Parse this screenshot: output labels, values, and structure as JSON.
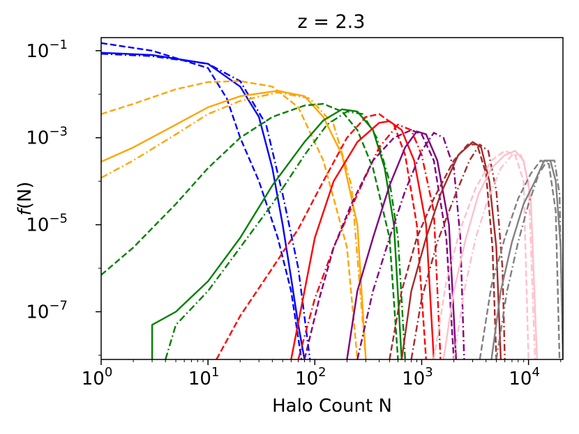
{
  "chart_data": {
    "type": "line",
    "title": "z = 2.3",
    "xlabel": "Halo Count N",
    "ylabel_italic": "f",
    "ylabel_rest": "(N)",
    "xscale": "log",
    "yscale": "log",
    "xlim": [
      1,
      21000
    ],
    "ylim": [
      8e-09,
      0.2
    ],
    "grid": false,
    "legend": "none",
    "xticks": [
      {
        "value": 1,
        "base": "10",
        "exp": "0"
      },
      {
        "value": 10,
        "base": "10",
        "exp": "1"
      },
      {
        "value": 100,
        "base": "10",
        "exp": "2"
      },
      {
        "value": 1000,
        "base": "10",
        "exp": "3"
      },
      {
        "value": 10000,
        "base": "10",
        "exp": "4"
      }
    ],
    "yticks": [
      {
        "value": 0.1,
        "base": "10",
        "exp": "−1"
      },
      {
        "value": 0.001,
        "base": "10",
        "exp": "−3"
      },
      {
        "value": 1e-05,
        "base": "10",
        "exp": "−5"
      },
      {
        "value": 1e-07,
        "base": "10",
        "exp": "−7"
      }
    ],
    "series": [
      {
        "color": "#0000ff",
        "style": "solid",
        "points": [
          [
            1,
            0.09
          ],
          [
            3,
            0.08
          ],
          [
            10,
            0.05
          ],
          [
            20,
            0.015
          ],
          [
            30,
            0.003
          ],
          [
            40,
            0.0002
          ],
          [
            50,
            1e-05
          ],
          [
            60,
            6e-07
          ],
          [
            70,
            5e-08
          ],
          [
            80,
            8e-09
          ]
        ]
      },
      {
        "color": "#0000ff",
        "style": "dashed",
        "points": [
          [
            1,
            0.15
          ],
          [
            3,
            0.1
          ],
          [
            10,
            0.04
          ],
          [
            15,
            0.008
          ],
          [
            20,
            0.001
          ],
          [
            30,
            0.0001
          ],
          [
            45,
            5e-06
          ],
          [
            60,
            3e-07
          ],
          [
            75,
            8e-09
          ]
        ]
      },
      {
        "color": "#0000ff",
        "style": "dashdot",
        "points": [
          [
            1,
            0.085
          ],
          [
            3,
            0.075
          ],
          [
            10,
            0.05
          ],
          [
            20,
            0.02
          ],
          [
            35,
            0.002
          ],
          [
            50,
            5e-05
          ],
          [
            70,
            1e-06
          ],
          [
            90,
            8e-09
          ]
        ]
      },
      {
        "color": "#ffa500",
        "style": "solid",
        "points": [
          [
            1,
            0.00028
          ],
          [
            2,
            0.0006
          ],
          [
            5,
            0.002
          ],
          [
            10,
            0.005
          ],
          [
            20,
            0.009
          ],
          [
            45,
            0.012
          ],
          [
            80,
            0.009
          ],
          [
            120,
            0.003
          ],
          [
            180,
            0.0004
          ],
          [
            250,
            1e-05
          ],
          [
            300,
            8e-09
          ]
        ]
      },
      {
        "color": "#ffa500",
        "style": "dashed",
        "points": [
          [
            1,
            0.0035
          ],
          [
            2,
            0.006
          ],
          [
            5,
            0.013
          ],
          [
            10,
            0.019
          ],
          [
            20,
            0.02
          ],
          [
            40,
            0.015
          ],
          [
            70,
            0.005
          ],
          [
            120,
            0.0003
          ],
          [
            200,
            3e-06
          ],
          [
            250,
            8e-09
          ]
        ]
      },
      {
        "color": "#ffa500",
        "style": "dashdot",
        "points": [
          [
            1,
            0.00012
          ],
          [
            2,
            0.0003
          ],
          [
            5,
            0.0012
          ],
          [
            10,
            0.0035
          ],
          [
            20,
            0.007
          ],
          [
            45,
            0.011
          ],
          [
            90,
            0.008
          ],
          [
            150,
            0.002
          ],
          [
            220,
            8e-05
          ],
          [
            300,
            8e-09
          ]
        ]
      },
      {
        "color": "#008000",
        "style": "solid",
        "points": [
          [
            3,
            8e-11
          ],
          [
            3,
            5e-08
          ],
          [
            5,
            1e-07
          ],
          [
            10,
            5e-07
          ],
          [
            20,
            5e-06
          ],
          [
            40,
            8e-05
          ],
          [
            80,
            0.0008
          ],
          [
            120,
            0.0025
          ],
          [
            180,
            0.0045
          ],
          [
            250,
            0.004
          ],
          [
            350,
            0.0015
          ],
          [
            450,
            0.0002
          ],
          [
            550,
            1e-05
          ],
          [
            650,
            8e-09
          ]
        ]
      },
      {
        "color": "#008000",
        "style": "dashed",
        "points": [
          [
            1,
            7e-07
          ],
          [
            2,
            3e-06
          ],
          [
            5,
            3e-05
          ],
          [
            10,
            0.0002
          ],
          [
            20,
            0.001
          ],
          [
            40,
            0.003
          ],
          [
            80,
            0.0055
          ],
          [
            120,
            0.006
          ],
          [
            180,
            0.004
          ],
          [
            250,
            0.0015
          ],
          [
            350,
            0.0002
          ],
          [
            500,
            5e-06
          ],
          [
            600,
            8e-09
          ]
        ]
      },
      {
        "color": "#008000",
        "style": "dashdot",
        "points": [
          [
            4,
            8e-09
          ],
          [
            5,
            5e-08
          ],
          [
            10,
            3e-07
          ],
          [
            20,
            3e-06
          ],
          [
            40,
            3e-05
          ],
          [
            80,
            0.0004
          ],
          [
            130,
            0.002
          ],
          [
            200,
            0.004
          ],
          [
            280,
            0.0035
          ],
          [
            380,
            0.001
          ],
          [
            500,
            0.0001
          ],
          [
            600,
            5e-06
          ],
          [
            700,
            8e-09
          ]
        ]
      },
      {
        "color": "#ff0000",
        "style": "solid",
        "points": [
          [
            60,
            8e-09
          ],
          [
            80,
            3e-07
          ],
          [
            100,
            5e-06
          ],
          [
            150,
            0.0001
          ],
          [
            250,
            0.0008
          ],
          [
            400,
            0.0022
          ],
          [
            500,
            0.0024
          ],
          [
            650,
            0.0015
          ],
          [
            850,
            0.0003
          ],
          [
            1100,
            1e-05
          ],
          [
            1300,
            8e-09
          ]
        ]
      },
      {
        "color": "#ff0000",
        "style": "dashed",
        "points": [
          [
            12,
            8e-09
          ],
          [
            20,
            8e-08
          ],
          [
            40,
            1e-06
          ],
          [
            70,
            8e-06
          ],
          [
            120,
            0.0001
          ],
          [
            200,
            0.001
          ],
          [
            300,
            0.003
          ],
          [
            400,
            0.0035
          ],
          [
            550,
            0.002
          ],
          [
            700,
            0.0004
          ],
          [
            900,
            1e-05
          ],
          [
            1100,
            8e-09
          ]
        ]
      },
      {
        "color": "#ff0000",
        "style": "dashdot",
        "points": [
          [
            70,
            8e-09
          ],
          [
            100,
            2e-07
          ],
          [
            150,
            3e-06
          ],
          [
            250,
            5e-05
          ],
          [
            400,
            0.0006
          ],
          [
            600,
            0.002
          ],
          [
            800,
            0.0015
          ],
          [
            1000,
            0.0004
          ],
          [
            1300,
            2e-05
          ],
          [
            1500,
            8e-09
          ]
        ]
      },
      {
        "color": "#800080",
        "style": "solid",
        "points": [
          [
            200,
            8e-09
          ],
          [
            250,
            3e-07
          ],
          [
            350,
            5e-06
          ],
          [
            500,
            8e-05
          ],
          [
            700,
            0.0006
          ],
          [
            900,
            0.0014
          ],
          [
            1100,
            0.0012
          ],
          [
            1400,
            0.0003
          ],
          [
            1800,
            1e-05
          ],
          [
            2100,
            8e-09
          ]
        ]
      },
      {
        "color": "#800080",
        "style": "dashed",
        "points": [
          [
            80,
            8e-09
          ],
          [
            110,
            2e-07
          ],
          [
            150,
            3e-06
          ],
          [
            220,
            3e-05
          ],
          [
            350,
            0.0003
          ],
          [
            550,
            0.001
          ],
          [
            800,
            0.0015
          ],
          [
            1000,
            0.0012
          ],
          [
            1300,
            0.0003
          ],
          [
            1700,
            5e-06
          ],
          [
            2000,
            8e-09
          ]
        ]
      },
      {
        "color": "#800080",
        "style": "dashdot",
        "points": [
          [
            250,
            8e-09
          ],
          [
            350,
            3e-07
          ],
          [
            500,
            5e-06
          ],
          [
            700,
            6e-05
          ],
          [
            1000,
            0.0005
          ],
          [
            1300,
            0.0013
          ],
          [
            1600,
            0.001
          ],
          [
            2000,
            0.0002
          ],
          [
            2300,
            5e-06
          ],
          [
            2500,
            8e-09
          ]
        ]
      },
      {
        "color": "#a52a2a",
        "style": "solid",
        "points": [
          [
            650,
            8e-09
          ],
          [
            800,
            3e-07
          ],
          [
            1100,
            5e-06
          ],
          [
            1500,
            5e-05
          ],
          [
            2200,
            0.0004
          ],
          [
            3000,
            0.0008
          ],
          [
            3600,
            0.0006
          ],
          [
            4300,
            0.0001
          ],
          [
            5000,
            3e-06
          ],
          [
            5500,
            8e-09
          ]
        ]
      },
      {
        "color": "#a52a2a",
        "style": "dashed",
        "points": [
          [
            500,
            8e-09
          ],
          [
            650,
            3e-07
          ],
          [
            900,
            5e-06
          ],
          [
            1300,
            4e-05
          ],
          [
            2000,
            0.0003
          ],
          [
            2700,
            0.0007
          ],
          [
            3300,
            0.0007
          ],
          [
            4000,
            0.00015
          ],
          [
            4600,
            3e-06
          ],
          [
            5000,
            8e-09
          ]
        ]
      },
      {
        "color": "#a52a2a",
        "style": "dashdot",
        "points": [
          [
            800,
            8e-09
          ],
          [
            1000,
            2e-07
          ],
          [
            1400,
            4e-06
          ],
          [
            2000,
            4e-05
          ],
          [
            2800,
            0.0003
          ],
          [
            3500,
            0.0007
          ],
          [
            4200,
            0.0005
          ],
          [
            5000,
            6e-05
          ],
          [
            5700,
            1e-06
          ],
          [
            6000,
            8e-09
          ]
        ]
      },
      {
        "color": "#ffc0cb",
        "style": "solid",
        "points": [
          [
            1600,
            8e-09
          ],
          [
            2000,
            3e-07
          ],
          [
            2600,
            5e-06
          ],
          [
            3400,
            5e-05
          ],
          [
            4500,
            0.0002
          ],
          [
            6000,
            0.0004
          ],
          [
            7500,
            0.0005
          ],
          [
            9000,
            0.0003
          ],
          [
            10500,
            4e-05
          ],
          [
            12000,
            8e-09
          ]
        ]
      },
      {
        "color": "#ffc0cb",
        "style": "dashed",
        "points": [
          [
            1300,
            8e-09
          ],
          [
            1700,
            5e-07
          ],
          [
            2300,
            8e-06
          ],
          [
            3200,
            7e-05
          ],
          [
            4500,
            0.0003
          ],
          [
            6000,
            0.0005
          ],
          [
            7500,
            0.0004
          ],
          [
            9000,
            0.0001
          ],
          [
            10000,
            8e-09
          ]
        ]
      },
      {
        "color": "#ffc0cb",
        "style": "dashdot",
        "points": [
          [
            2000,
            8e-09
          ],
          [
            2500,
            3e-07
          ],
          [
            3200,
            5e-06
          ],
          [
            4200,
            4e-05
          ],
          [
            5500,
            0.0002
          ],
          [
            7000,
            0.0004
          ],
          [
            8500,
            0.0004
          ],
          [
            10000,
            0.0001
          ],
          [
            11500,
            8e-09
          ]
        ]
      },
      {
        "color": "#808080",
        "style": "solid",
        "points": [
          [
            4500,
            8e-09
          ],
          [
            5500,
            3e-07
          ],
          [
            7000,
            4e-06
          ],
          [
            9000,
            3e-05
          ],
          [
            11500,
            0.0001
          ],
          [
            14000,
            0.0003
          ],
          [
            16000,
            0.0003
          ],
          [
            18000,
            0.0001
          ],
          [
            20000,
            3e-06
          ],
          [
            21000,
            8e-09
          ]
        ]
      },
      {
        "color": "#808080",
        "style": "dashed",
        "points": [
          [
            3500,
            8e-09
          ],
          [
            4500,
            4e-07
          ],
          [
            6000,
            5e-06
          ],
          [
            8000,
            4e-05
          ],
          [
            10500,
            0.00015
          ],
          [
            13000,
            0.0003
          ],
          [
            15500,
            0.00025
          ],
          [
            18000,
            2e-05
          ],
          [
            19500,
            8e-09
          ]
        ]
      },
      {
        "color": "#808080",
        "style": "dashdot",
        "points": [
          [
            5000,
            8e-09
          ],
          [
            6300,
            3e-07
          ],
          [
            8000,
            4e-06
          ],
          [
            10000,
            3e-05
          ],
          [
            12500,
            0.00015
          ],
          [
            15000,
            0.0003
          ],
          [
            17500,
            0.0003
          ],
          [
            19500,
            5e-05
          ],
          [
            21000,
            8e-09
          ]
        ]
      }
    ]
  }
}
